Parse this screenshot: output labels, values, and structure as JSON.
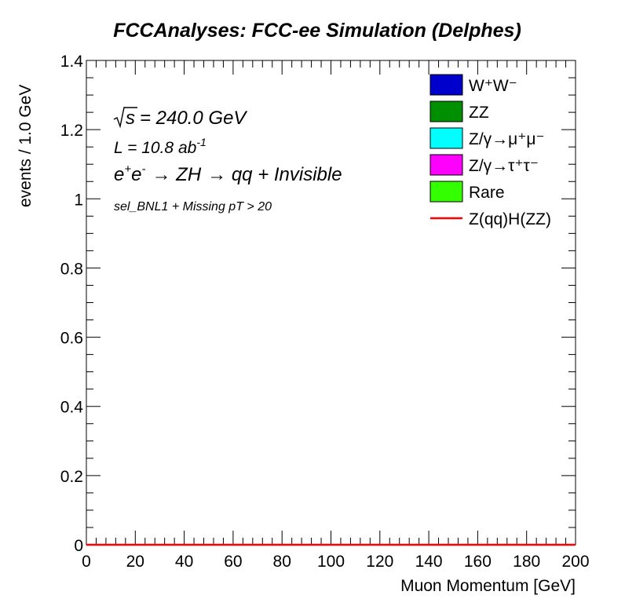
{
  "chart_data": {
    "type": "bar",
    "title": "FCCAnalyses: FCC-ee Simulation (Delphes)",
    "xlabel": "Muon Momentum [GeV]",
    "ylabel": "events / 1.0 GeV",
    "xlim": [
      0,
      200
    ],
    "ylim": [
      0,
      1.4
    ],
    "x_ticks": [
      "0",
      "20",
      "40",
      "60",
      "80",
      "100",
      "120",
      "140",
      "160",
      "180",
      "200"
    ],
    "y_ticks": [
      "0",
      "0.2",
      "0.4",
      "0.6",
      "0.8",
      "1",
      "1.2",
      "1.4"
    ],
    "grid": false,
    "legend_position": "top-right",
    "annotations": {
      "sqrt_s": "= 240.0 GeV",
      "lumi_prefix": "L = 10.8 ab",
      "lumi_exp": "-1",
      "process_a": "e",
      "process_b": "→ ZH",
      "process_c": "→ qq + Invisible",
      "selection": "sel_BNL1 + Missing pT > 20"
    },
    "series": [
      {
        "name": "W⁺W⁻",
        "kind": "stack",
        "color": "#0000cc",
        "values": []
      },
      {
        "name": "ZZ",
        "kind": "stack",
        "color": "#008f00",
        "values": []
      },
      {
        "name": "Z/γ→μ⁺μ⁻",
        "kind": "stack",
        "color": "#00ffff",
        "values": []
      },
      {
        "name": "Z/γ→τ⁺τ⁻",
        "kind": "stack",
        "color": "#ff00ff",
        "values": []
      },
      {
        "name": "Rare",
        "kind": "stack",
        "color": "#33ff00",
        "values": []
      },
      {
        "name": "Z(qq)H(ZZ)",
        "kind": "line",
        "color": "#ff0000",
        "values": [
          0,
          0
        ]
      }
    ]
  }
}
